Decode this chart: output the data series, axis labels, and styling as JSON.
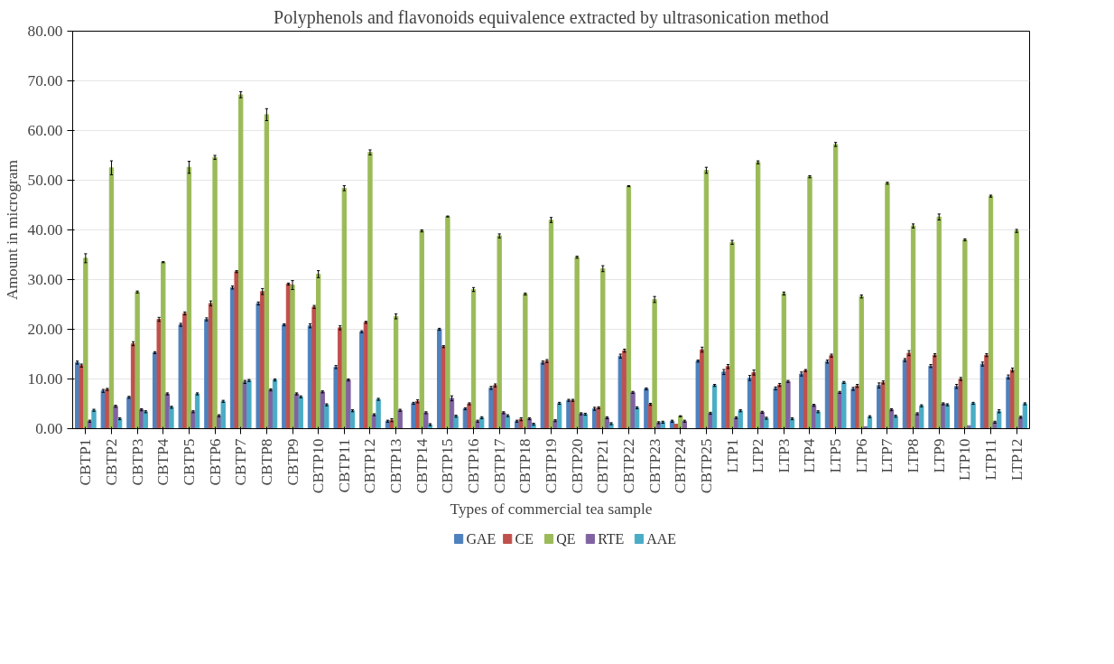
{
  "chart_data": {
    "type": "bar",
    "title": "Polyphenols and flavonoids equivalence extracted by ultrasonication method",
    "xlabel": "Types of commercial tea sample",
    "ylabel": "Amount in microgram",
    "categories": [
      "CBTP1",
      "CBTP2",
      "CBTP3",
      "CBTP4",
      "CBTP5",
      "CBTP6",
      "CBTP7",
      "CBTP8",
      "CBTP9",
      "CBTP10",
      "CBTP11",
      "CBTP12",
      "CBTP13",
      "CBTP14",
      "CBTP15",
      "CBTP16",
      "CBTP17",
      "CBTP18",
      "CBTP19",
      "CBTP20",
      "CBTP21",
      "CBTP22",
      "CBTP23",
      "CBTP24",
      "CBTP25",
      "LTP1",
      "LTP2",
      "LTP3",
      "LTP4",
      "LTP5",
      "LTP6",
      "LTP7",
      "LTP8",
      "LTP9",
      "LTP10",
      "LTP11",
      "LTP12"
    ],
    "series": [
      {
        "name": "GAE",
        "color": "#4f81bd",
        "values": [
          13.3,
          7.6,
          6.3,
          15.3,
          20.9,
          22.0,
          28.4,
          25.2,
          20.9,
          20.7,
          12.4,
          19.5,
          1.5,
          5.1,
          20.0,
          4.0,
          8.2,
          1.5,
          13.3,
          5.7,
          4.0,
          14.6,
          8.0,
          1.5,
          13.6,
          11.4,
          10.2,
          8.1,
          11.0,
          13.5,
          8.0,
          8.7,
          13.8,
          12.6,
          8.5,
          13.0,
          10.4
        ],
        "errors": [
          0.3,
          0.3,
          0.2,
          0.2,
          0.3,
          0.3,
          0.3,
          0.3,
          0.2,
          0.4,
          0.3,
          0.2,
          0.2,
          0.2,
          0.2,
          0.2,
          0.3,
          0.2,
          0.3,
          0.2,
          0.3,
          0.4,
          0.2,
          0.2,
          0.2,
          0.5,
          0.5,
          0.3,
          0.4,
          0.3,
          0.3,
          0.5,
          0.3,
          0.3,
          0.4,
          0.4,
          0.4
        ]
      },
      {
        "name": "CE",
        "color": "#c0504d",
        "values": [
          12.7,
          7.9,
          17.1,
          22.0,
          23.2,
          25.2,
          31.6,
          27.6,
          29.1,
          24.5,
          20.3,
          21.4,
          1.7,
          5.5,
          16.5,
          5.0,
          8.7,
          1.9,
          13.6,
          5.7,
          4.2,
          15.7,
          4.9,
          0.9,
          15.9,
          12.5,
          11.3,
          8.8,
          11.7,
          14.7,
          8.6,
          9.3,
          15.2,
          14.8,
          10.0,
          14.8,
          11.8
        ],
        "errors": [
          0.3,
          0.2,
          0.4,
          0.4,
          0.3,
          0.5,
          0.2,
          0.6,
          0.2,
          0.3,
          0.4,
          0.2,
          0.3,
          0.3,
          0.2,
          0.2,
          0.3,
          0.3,
          0.3,
          0.2,
          0.2,
          0.3,
          0.2,
          null,
          0.5,
          0.4,
          0.5,
          0.3,
          0.2,
          0.3,
          0.3,
          0.3,
          0.5,
          0.3,
          0.3,
          0.3,
          0.4
        ]
      },
      {
        "name": "QE",
        "color": "#9bbb59",
        "values": [
          34.3,
          52.5,
          27.5,
          33.5,
          52.6,
          54.6,
          67.2,
          63.2,
          28.9,
          31.1,
          48.4,
          55.6,
          22.6,
          39.8,
          42.7,
          28.0,
          38.8,
          27.1,
          42.0,
          34.5,
          32.2,
          48.8,
          26.0,
          2.5,
          52.0,
          37.5,
          53.6,
          27.2,
          50.7,
          57.2,
          26.6,
          49.4,
          40.8,
          42.6,
          38.0,
          46.8,
          39.8
        ],
        "errors": [
          0.9,
          1.4,
          0.2,
          0.1,
          1.2,
          0.4,
          0.6,
          1.2,
          0.9,
          0.7,
          0.5,
          0.5,
          0.5,
          0.2,
          0.1,
          0.4,
          0.4,
          0.2,
          0.5,
          0.2,
          0.6,
          0.1,
          0.6,
          0.1,
          0.6,
          0.4,
          0.3,
          0.3,
          0.2,
          0.4,
          0.3,
          0.2,
          0.4,
          0.6,
          0.2,
          0.2,
          0.3
        ]
      },
      {
        "name": "RTE",
        "color": "#8064a2",
        "values": [
          1.5,
          4.5,
          3.8,
          7.0,
          3.4,
          2.6,
          9.4,
          7.8,
          7.0,
          7.4,
          9.8,
          2.8,
          3.7,
          3.2,
          6.1,
          1.5,
          3.2,
          2.0,
          1.6,
          3.0,
          2.2,
          7.3,
          1.2,
          1.5,
          3.1,
          2.2,
          3.3,
          9.5,
          4.7,
          7.3,
          0.4,
          3.8,
          3.0,
          5.0,
          0.6,
          1.3,
          2.3
        ],
        "errors": [
          0.2,
          0.2,
          0.2,
          0.2,
          0.2,
          0.2,
          0.3,
          0.2,
          0.2,
          0.2,
          0.2,
          0.2,
          0.2,
          0.2,
          0.5,
          0.2,
          0.2,
          0.2,
          0.2,
          0.2,
          0.2,
          0.2,
          0.2,
          0.2,
          0.2,
          0.2,
          0.2,
          0.2,
          0.2,
          0.2,
          null,
          0.2,
          0.2,
          0.2,
          null,
          0.2,
          0.2
        ]
      },
      {
        "name": "AAE",
        "color": "#4bacc6",
        "values": [
          3.7,
          2.0,
          3.4,
          4.3,
          7.0,
          5.5,
          9.7,
          9.8,
          6.4,
          4.8,
          3.6,
          5.9,
          null,
          0.8,
          2.5,
          2.2,
          2.6,
          0.9,
          5.1,
          2.9,
          1.0,
          4.2,
          1.3,
          null,
          8.7,
          3.6,
          2.1,
          2.0,
          3.4,
          9.3,
          2.4,
          2.5,
          4.6,
          4.8,
          5.1,
          3.5,
          5.0
        ],
        "errors": [
          0.2,
          0.2,
          0.2,
          0.2,
          0.2,
          0.2,
          0.2,
          0.2,
          0.2,
          0.2,
          0.2,
          0.2,
          null,
          0.2,
          0.2,
          0.2,
          0.2,
          0.2,
          0.2,
          0.2,
          0.2,
          0.2,
          0.2,
          null,
          0.2,
          0.2,
          0.2,
          0.2,
          0.2,
          0.2,
          0.2,
          0.2,
          0.2,
          0.2,
          0.2,
          0.3,
          0.2
        ]
      }
    ],
    "ylim": [
      0,
      80
    ],
    "yticks": [
      {
        "value": 0,
        "label": "0.00"
      },
      {
        "value": 10,
        "label": "10.00"
      },
      {
        "value": 20,
        "label": "20.00"
      },
      {
        "value": 30,
        "label": "30.00"
      },
      {
        "value": 40,
        "label": "40.00"
      },
      {
        "value": 50,
        "label": "50.00"
      },
      {
        "value": 60,
        "label": "60.00"
      },
      {
        "value": 70,
        "label": "70.00"
      },
      {
        "value": 80,
        "label": "80.00"
      }
    ],
    "grid": "y",
    "legend": "bottom"
  }
}
